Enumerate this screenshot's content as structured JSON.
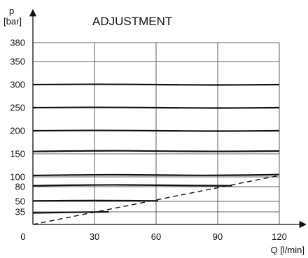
{
  "chart_data": {
    "type": "line",
    "title": "ADJUSTMENT",
    "ylabel": "p",
    "ylabel_unit": "[bar]",
    "xlabel": "Q [l/min]",
    "xlim": [
      0,
      120
    ],
    "y_ticks": [
      35,
      50,
      80,
      100,
      150,
      200,
      250,
      300,
      350,
      380
    ],
    "x_ticks": [
      0,
      30,
      60,
      90,
      120
    ],
    "grid": true,
    "series": [
      {
        "style": "solid",
        "x": [
          0,
          30,
          60,
          90,
          120
        ],
        "y": [
          300,
          301,
          300,
          299,
          300
        ]
      },
      {
        "style": "solid",
        "x": [
          0,
          30,
          60,
          90,
          120
        ],
        "y": [
          250,
          251,
          250,
          249,
          250
        ]
      },
      {
        "style": "solid",
        "x": [
          0,
          30,
          60,
          90,
          120
        ],
        "y": [
          200,
          201,
          200,
          199,
          200
        ]
      },
      {
        "style": "solid",
        "x": [
          0,
          30,
          60,
          90,
          120
        ],
        "y": [
          155,
          157,
          156,
          155,
          156
        ]
      },
      {
        "style": "solid",
        "x": [
          0,
          30,
          60,
          90,
          120
        ],
        "y": [
          103,
          105,
          104,
          103,
          105
        ]
      },
      {
        "style": "solid",
        "x": [
          0,
          30,
          60,
          97
        ],
        "y": [
          82,
          84,
          83,
          82
        ]
      },
      {
        "style": "solid",
        "x": [
          0,
          30,
          61
        ],
        "y": [
          51,
          52,
          51
        ]
      },
      {
        "style": "solid",
        "x": [
          0,
          20,
          37
        ],
        "y": [
          32,
          34,
          35
        ]
      },
      {
        "style": "dashed",
        "x": [
          0,
          120
        ],
        "y": [
          0,
          103
        ]
      }
    ]
  }
}
